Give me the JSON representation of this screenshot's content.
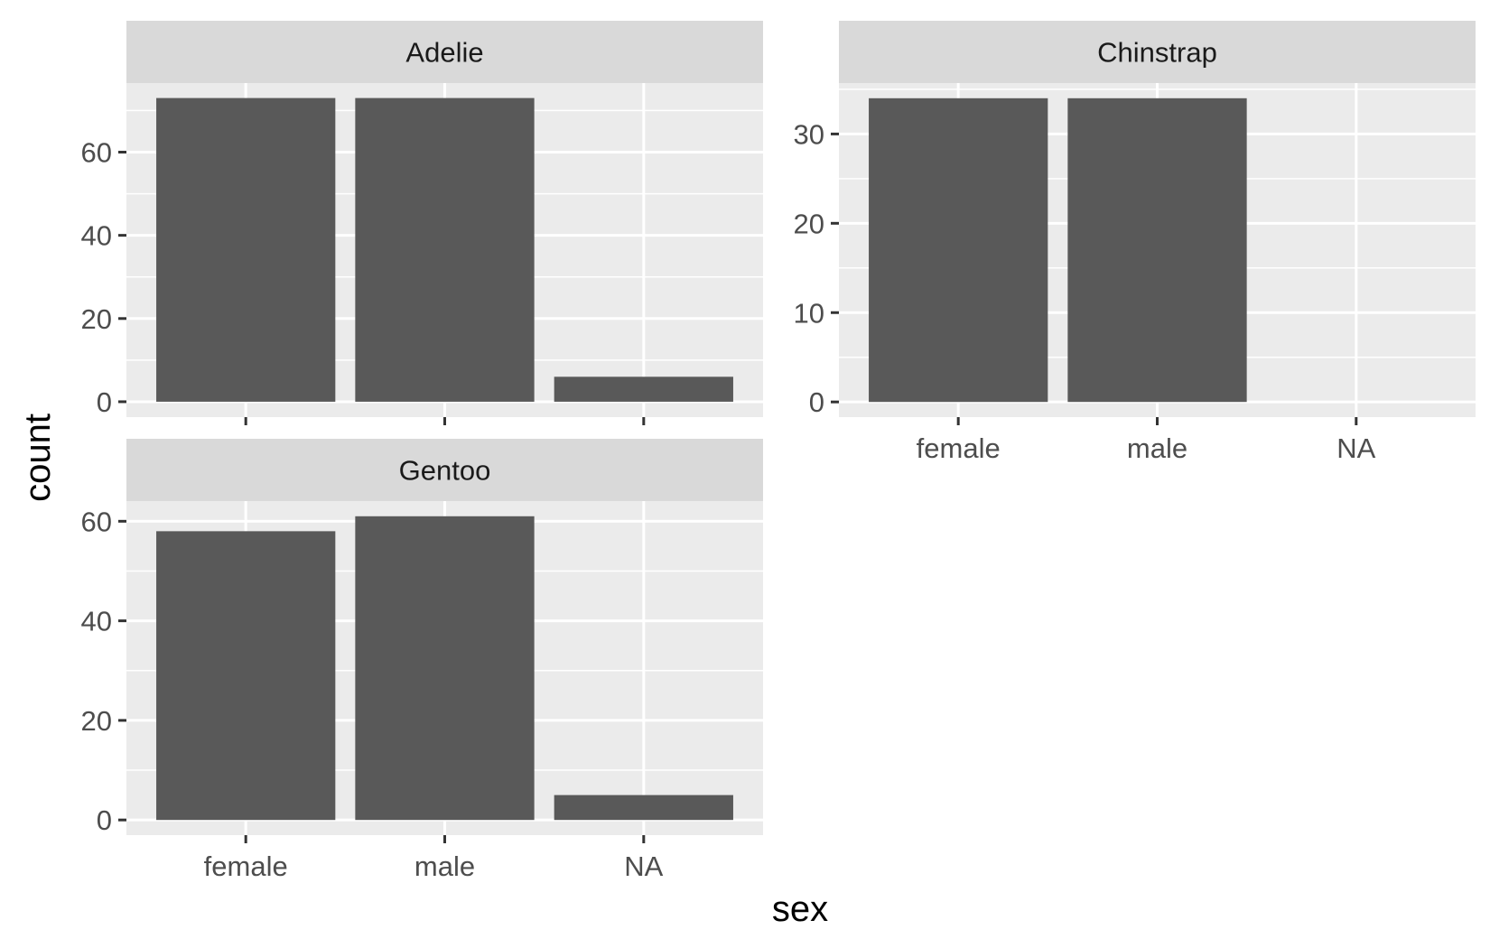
{
  "chart_data": {
    "type": "bar",
    "xlabel": "sex",
    "ylabel": "count",
    "categories": [
      "female",
      "male",
      "NA"
    ],
    "colors": {
      "bar": "#595959",
      "panel": "#ebebeb",
      "strip": "#d9d9d9",
      "grid": "#ffffff"
    },
    "facets": [
      {
        "name": "Adelie",
        "values": [
          73,
          73,
          6
        ],
        "ylim": [
          -3.7,
          76.6
        ],
        "yticks": [
          0,
          20,
          40,
          60
        ],
        "ytick_labels": [
          "0",
          "20",
          "40",
          "60"
        ]
      },
      {
        "name": "Chinstrap",
        "values": [
          34,
          34,
          0
        ],
        "ylim": [
          -1.7,
          35.7
        ],
        "yticks": [
          0,
          10,
          20,
          30
        ],
        "ytick_labels": [
          "0",
          "10",
          "20",
          "30"
        ]
      },
      {
        "name": "Gentoo",
        "values": [
          58,
          61,
          5
        ],
        "ylim": [
          -3.05,
          64.05
        ],
        "yticks": [
          0,
          20,
          40,
          60
        ],
        "ytick_labels": [
          "0",
          "20",
          "40",
          "60"
        ]
      }
    ],
    "grid": true,
    "legend": "none"
  }
}
